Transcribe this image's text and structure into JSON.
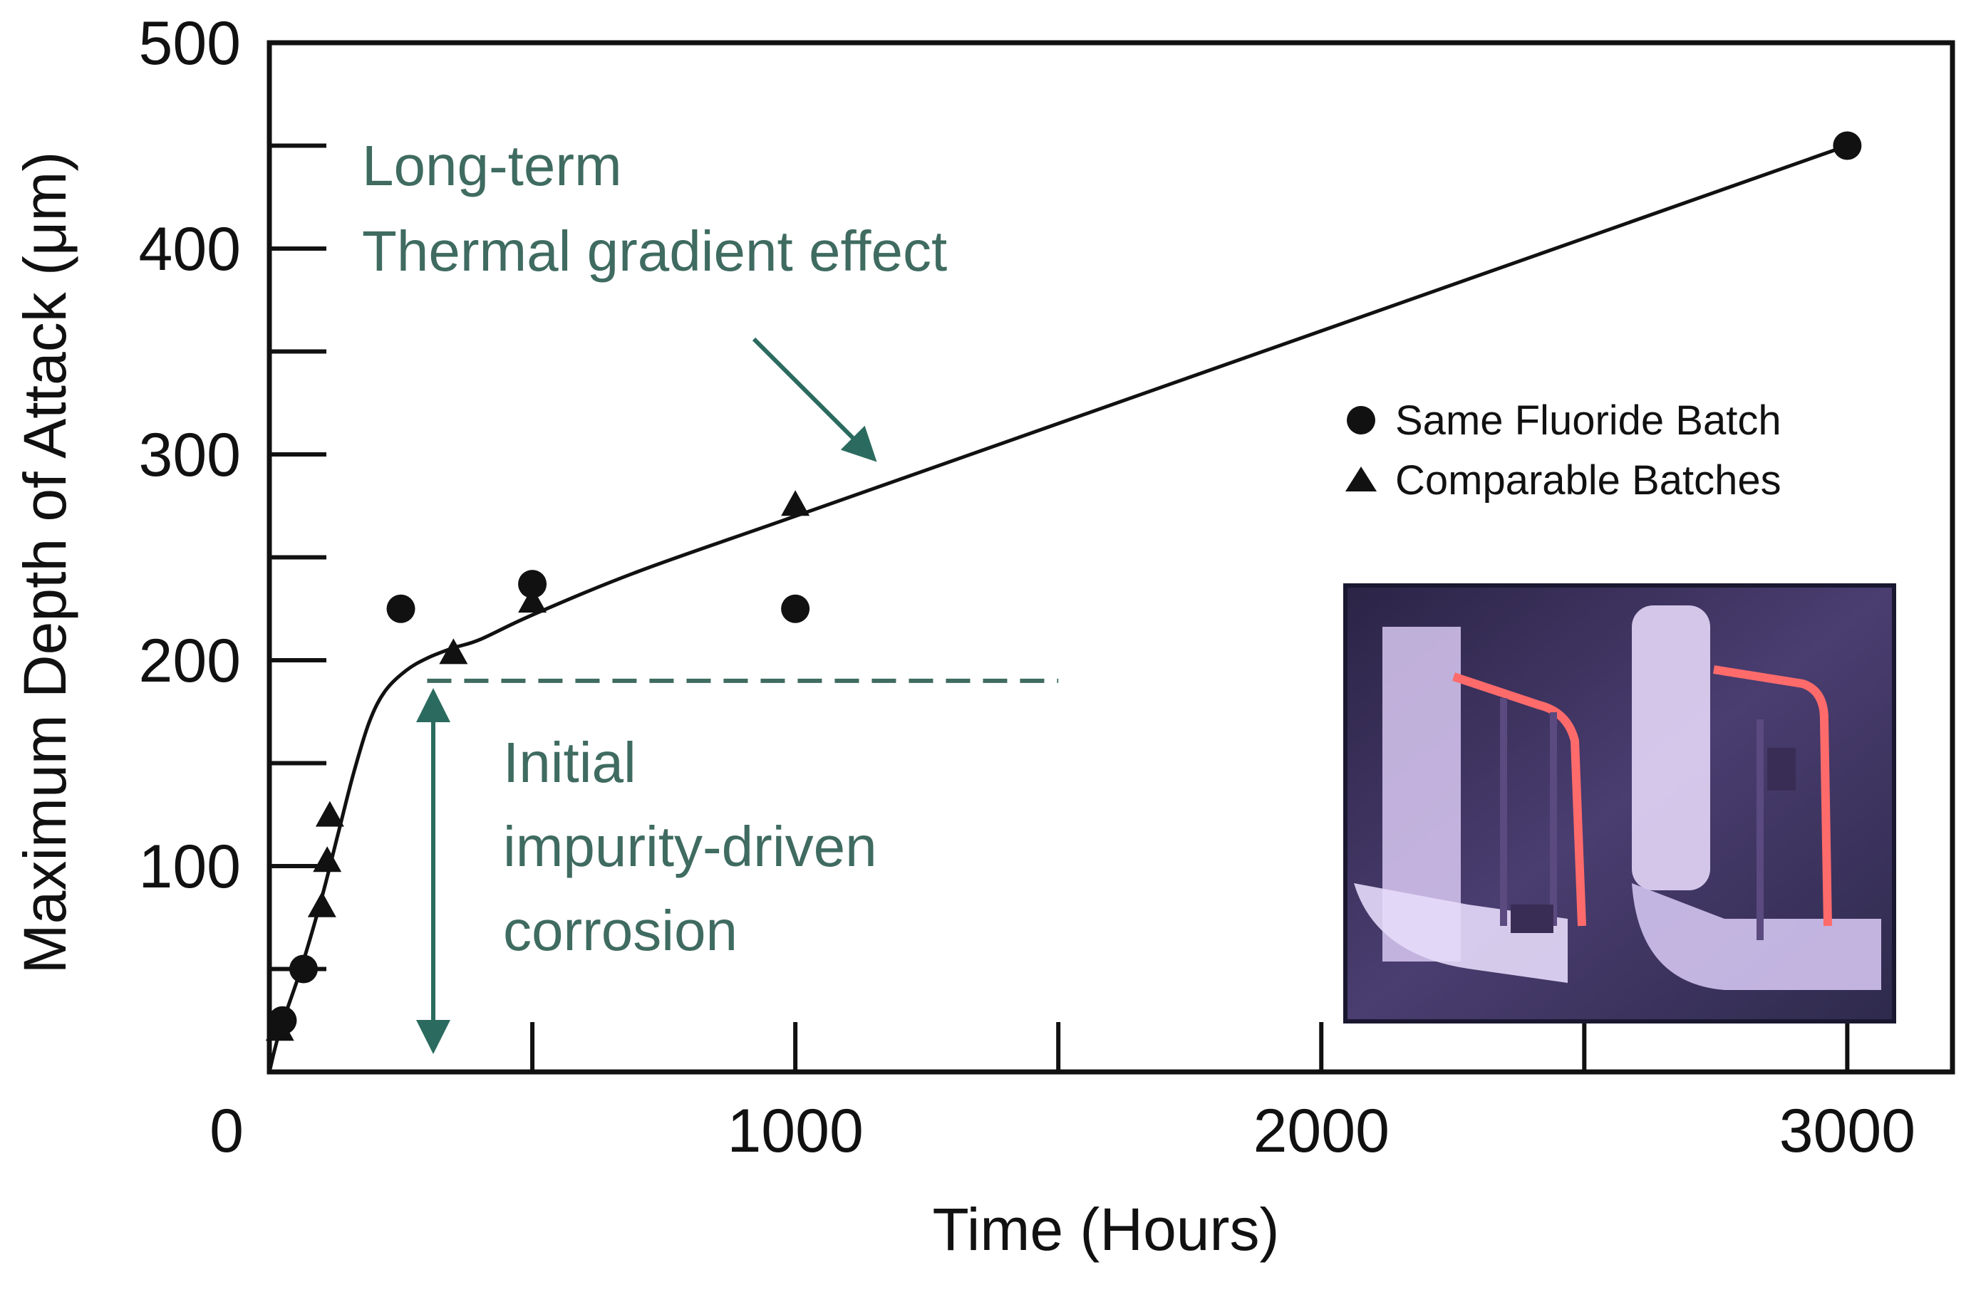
{
  "chart_data": {
    "type": "scatter",
    "xlabel": "Time (Hours)",
    "ylabel": "Maximum Depth of Attack (μm)",
    "xlim": [
      0,
      3200
    ],
    "ylim": [
      0,
      500
    ],
    "x_ticks": [
      0,
      1000,
      2000,
      3000
    ],
    "x_minor_ticks": [
      500,
      1500,
      2500
    ],
    "y_ticks": [
      100,
      200,
      300,
      400,
      500
    ],
    "y_minor_ticks": [
      50,
      150,
      250,
      350,
      450
    ],
    "grid": false,
    "legend_position": "right",
    "series": [
      {
        "name": "Same Fluoride Batch",
        "marker": "circle",
        "points": [
          [
            25,
            25
          ],
          [
            65,
            50
          ],
          [
            250,
            225
          ],
          [
            500,
            237
          ],
          [
            1000,
            225
          ],
          [
            3000,
            450
          ]
        ]
      },
      {
        "name": "Comparable Batches",
        "marker": "triangle",
        "points": [
          [
            20,
            20
          ],
          [
            100,
            80
          ],
          [
            110,
            102
          ],
          [
            115,
            124
          ],
          [
            350,
            203
          ],
          [
            500,
            228
          ],
          [
            1000,
            275
          ]
        ]
      }
    ],
    "fit_curve": [
      [
        0,
        0
      ],
      [
        20,
        20
      ],
      [
        60,
        50
      ],
      [
        100,
        85
      ],
      [
        130,
        115
      ],
      [
        160,
        145
      ],
      [
        190,
        170
      ],
      [
        220,
        185
      ],
      [
        260,
        195
      ],
      [
        300,
        201
      ],
      [
        350,
        206
      ],
      [
        400,
        210
      ],
      [
        500,
        222
      ],
      [
        700,
        243
      ],
      [
        1000,
        270
      ],
      [
        1500,
        315
      ],
      [
        2000,
        360
      ],
      [
        2500,
        405
      ],
      [
        3000,
        450
      ]
    ],
    "threshold_line": {
      "y": 190,
      "x_start": 300,
      "x_end": 1500,
      "style": "dashed"
    },
    "annotations": {
      "long_term": [
        "Long-term",
        "Thermal gradient effect"
      ],
      "initial": [
        "Initial",
        "impurity-driven",
        "corrosion"
      ]
    },
    "inset_photo": true
  },
  "colors": {
    "axis": "#111111",
    "marker": "#111111",
    "annotation": "#3f6b60",
    "annotation_arrow": "#2b6b5f",
    "photo_bg": "#3c325c",
    "glow": "#ff5a5a"
  }
}
